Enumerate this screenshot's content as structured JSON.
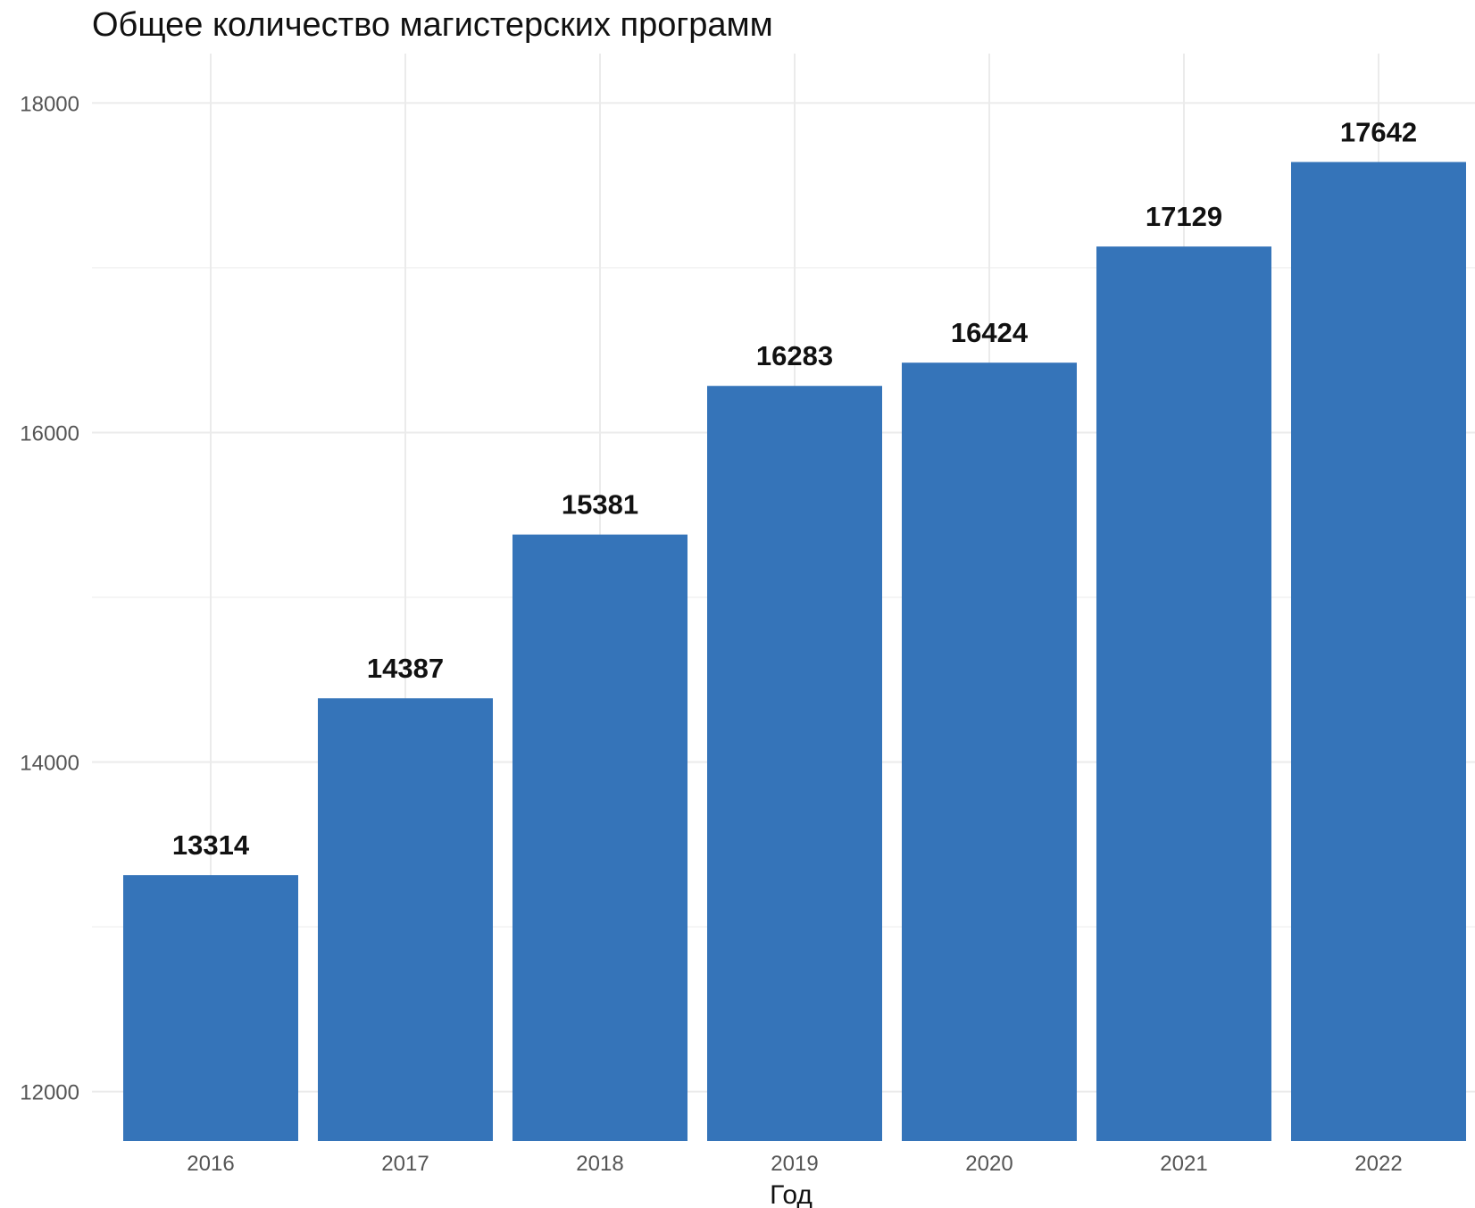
{
  "chart_data": {
    "type": "bar",
    "title": "Общее количество магистерских программ",
    "xlabel": "Год",
    "ylabel": "",
    "categories": [
      "2016",
      "2017",
      "2018",
      "2019",
      "2020",
      "2021",
      "2022"
    ],
    "values": [
      13314,
      14387,
      15381,
      16283,
      16424,
      17129,
      17642
    ],
    "ylim": [
      11700,
      18300
    ],
    "yticks": [
      "12000",
      "14000",
      "16000",
      "18000"
    ],
    "ytick_values": [
      12000,
      14000,
      16000,
      18000
    ],
    "minor_gridlines": [
      13000,
      15000,
      17000
    ],
    "grid": true,
    "legend": "none",
    "bar_color": "#3574b9"
  }
}
